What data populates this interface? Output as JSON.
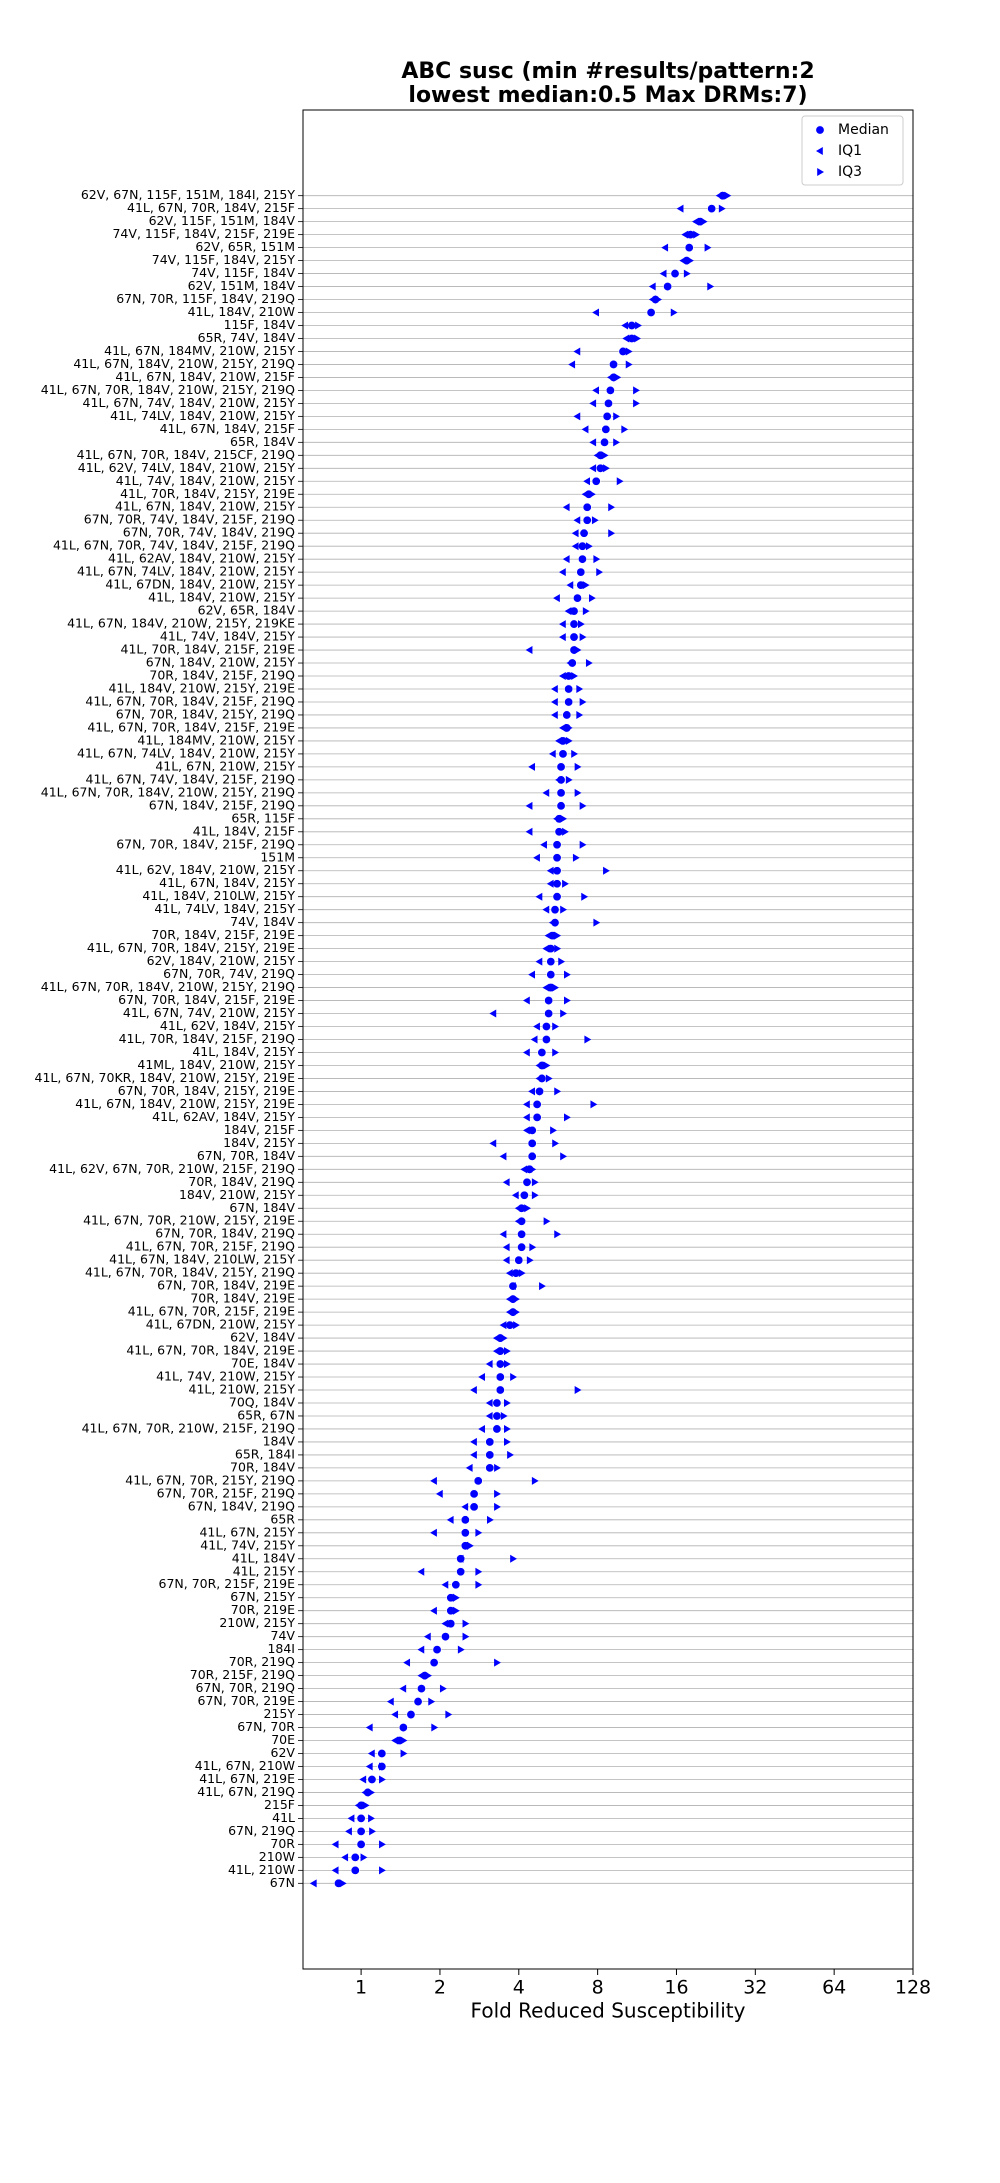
{
  "chart_data": {
    "type": "dot",
    "title": [
      "ABC susc (min #results/pattern:2",
      "lowest median:0.5 Max DRMs:7)"
    ],
    "xlabel": "Fold Reduced Susceptibility",
    "xscale": "log2",
    "xlim": [
      0.6,
      128
    ],
    "xticks": [
      1,
      2,
      4,
      8,
      16,
      32,
      64,
      128
    ],
    "grid": true,
    "legend": "upper right",
    "categories": [
      "62V, 67N, 115F, 151M, 184I, 215Y",
      "41L, 67N, 70R, 184V, 215F",
      "62V, 115F, 151M, 184V",
      "74V, 115F, 184V, 215F, 219E",
      "62V, 65R, 151M",
      "74V, 115F, 184V, 215Y",
      "74V, 115F, 184V",
      "62V, 151M, 184V",
      "67N, 70R, 115F, 184V, 219Q",
      "41L, 184V, 210W",
      "115F, 184V",
      "65R, 74V, 184V",
      "41L, 67N, 184MV, 210W, 215Y",
      "41L, 67N, 184V, 210W, 215Y, 219Q",
      "41L, 67N, 184V, 210W, 215F",
      "41L, 67N, 70R, 184V, 210W, 215Y, 219Q",
      "41L, 67N, 74V, 184V, 210W, 215Y",
      "41L, 74LV, 184V, 210W, 215Y",
      "41L, 67N, 184V, 215F",
      "65R, 184V",
      "41L, 67N, 70R, 184V, 215CF, 219Q",
      "41L, 62V, 74LV, 184V, 210W, 215Y",
      "41L, 74V, 184V, 210W, 215Y",
      "41L, 70R, 184V, 215Y, 219E",
      "41L, 67N, 184V, 210W, 215Y",
      "67N, 70R, 74V, 184V, 215F, 219Q",
      "67N, 70R, 74V, 184V, 219Q",
      "41L, 67N, 70R, 74V, 184V, 215F, 219Q",
      "41L, 62AV, 184V, 210W, 215Y",
      "41L, 67N, 74LV, 184V, 210W, 215Y",
      "41L, 67DN, 184V, 210W, 215Y",
      "41L, 184V, 210W, 215Y",
      "62V, 65R, 184V",
      "41L, 67N, 184V, 210W, 215Y, 219KE",
      "41L, 74V, 184V, 215Y",
      "41L, 70R, 184V, 215F, 219E",
      "67N, 184V, 210W, 215Y",
      "70R, 184V, 215F, 219Q",
      "41L, 184V, 210W, 215Y, 219E",
      "41L, 67N, 70R, 184V, 215F, 219Q",
      "67N, 70R, 184V, 215Y, 219Q",
      "41L, 67N, 70R, 184V, 215F, 219E",
      "41L, 184MV, 210W, 215Y",
      "41L, 67N, 74LV, 184V, 210W, 215Y",
      "41L, 67N, 210W, 215Y",
      "41L, 67N, 74V, 184V, 215F, 219Q",
      "41L, 67N, 70R, 184V, 210W, 215Y, 219Q",
      "67N, 184V, 215F, 219Q",
      "65R, 115F",
      "41L, 184V, 215F",
      "67N, 70R, 184V, 215F, 219Q",
      "151M",
      "41L, 62V, 184V, 210W, 215Y",
      "41L, 67N, 184V, 215Y",
      "41L, 184V, 210LW, 215Y",
      "41L, 74LV, 184V, 215Y",
      "74V, 184V",
      "70R, 184V, 215F, 219E",
      "41L, 67N, 70R, 184V, 215Y, 219E",
      "62V, 184V, 210W, 215Y",
      "67N, 70R, 74V, 219Q",
      "41L, 67N, 70R, 184V, 210W, 215Y, 219Q",
      "67N, 70R, 184V, 215F, 219E",
      "41L, 67N, 74V, 210W, 215Y",
      "41L, 62V, 184V, 215Y",
      "41L, 70R, 184V, 215F, 219Q",
      "41L, 184V, 215Y",
      "41ML, 184V, 210W, 215Y",
      "41L, 67N, 70KR, 184V, 210W, 215Y, 219E",
      "67N, 70R, 184V, 215Y, 219E",
      "41L, 67N, 184V, 210W, 215Y, 219E",
      "41L, 62AV, 184V, 215Y",
      "184V, 215F",
      "184V, 215Y",
      "67N, 70R, 184V",
      "41L, 62V, 67N, 70R, 210W, 215F, 219Q",
      "70R, 184V, 219Q",
      "184V, 210W, 215Y",
      "67N, 184V",
      "41L, 67N, 70R, 210W, 215Y, 219E",
      "67N, 70R, 184V, 219Q",
      "41L, 67N, 70R, 215F, 219Q",
      "41L, 67N, 184V, 210LW, 215Y",
      "41L, 67N, 70R, 184V, 215Y, 219Q",
      "67N, 70R, 184V, 219E",
      "70R, 184V, 219E",
      "41L, 67N, 70R, 215F, 219E",
      "41L, 67DN, 210W, 215Y",
      "62V, 184V",
      "41L, 67N, 70R, 184V, 219E",
      "70E, 184V",
      "41L, 74V, 210W, 215Y",
      "41L, 210W, 215Y",
      "70Q, 184V",
      "65R, 67N",
      "41L, 67N, 70R, 210W, 215F, 219Q",
      "184V",
      "65R, 184I",
      "70R, 184V",
      "41L, 67N, 70R, 215Y, 219Q",
      "67N, 70R, 215F, 219Q",
      "67N, 184V, 219Q",
      "65R",
      "41L, 67N, 215Y",
      "41L, 74V, 215Y",
      "41L, 184V",
      "41L, 215Y",
      "67N, 70R, 215F, 219E",
      "67N, 215Y",
      "70R, 219E",
      "210W, 215Y",
      "74V",
      "184I",
      "70R, 219Q",
      "70R, 215F, 219Q",
      "67N, 70R, 219Q",
      "67N, 70R, 219E",
      "215Y",
      "67N, 70R",
      "70E",
      "62V",
      "41L, 67N, 210W",
      "41L, 67N, 219E",
      "41L, 67N, 219Q",
      "215F",
      "41L",
      "67N, 219Q",
      "70R",
      "210W",
      "41L, 210W",
      "67N"
    ],
    "series": [
      {
        "name": "Median",
        "color": "#0000ff",
        "marker": "circle",
        "values": [
          24,
          21.8,
          19.7,
          18.1,
          17.9,
          17.5,
          15.8,
          14.8,
          13.3,
          12.8,
          10.8,
          10.8,
          10,
          9.2,
          9.2,
          8.95,
          8.8,
          8.7,
          8.6,
          8.5,
          8.2,
          8.2,
          7.9,
          7.4,
          7.3,
          7.3,
          7.1,
          7,
          7,
          6.9,
          6.9,
          6.7,
          6.5,
          6.5,
          6.5,
          6.5,
          6.4,
          6.2,
          6.2,
          6.2,
          6.1,
          6.1,
          5.9,
          5.9,
          5.8,
          5.8,
          5.8,
          5.8,
          5.7,
          5.7,
          5.6,
          5.6,
          5.6,
          5.6,
          5.6,
          5.5,
          5.5,
          5.4,
          5.3,
          5.3,
          5.3,
          5.3,
          5.2,
          5.2,
          5.1,
          5.1,
          4.9,
          4.9,
          4.9,
          4.8,
          4.7,
          4.7,
          4.5,
          4.5,
          4.5,
          4.4,
          4.3,
          4.2,
          4.1,
          4.1,
          4.1,
          4.1,
          4,
          3.9,
          3.8,
          3.8,
          3.8,
          3.7,
          3.4,
          3.4,
          3.4,
          3.4,
          3.4,
          3.3,
          3.3,
          3.3,
          3.1,
          3.1,
          3.1,
          2.8,
          2.7,
          2.7,
          2.5,
          2.5,
          2.5,
          2.4,
          2.4,
          2.3,
          2.2,
          2.2,
          2.2,
          2.1,
          1.95,
          1.9,
          1.75,
          1.7,
          1.65,
          1.55,
          1.45,
          1.4,
          1.2,
          1.2,
          1.1,
          1.06,
          1,
          1,
          1,
          1,
          0.95,
          0.95,
          0.82
        ]
      },
      {
        "name": "IQ1",
        "color": "#0000ff",
        "marker": "triangle-left",
        "values": [
          23.4,
          16.6,
          19,
          17.3,
          14.5,
          17,
          14.3,
          13,
          13,
          7.9,
          10.2,
          10.3,
          6.7,
          6.4,
          9,
          7.9,
          7.7,
          6.7,
          7.2,
          7.7,
          8,
          7.7,
          7.3,
          7.2,
          6.1,
          6.7,
          6.6,
          6.6,
          6.1,
          5.9,
          6.3,
          5.6,
          6.2,
          5.9,
          5.9,
          4.4,
          6.3,
          5.9,
          5.5,
          5.5,
          5.5,
          5.9,
          5.7,
          5.4,
          4.5,
          5.7,
          5.1,
          4.4,
          5.6,
          4.4,
          5,
          4.7,
          5.3,
          5.3,
          4.8,
          5.1,
          5.4,
          5.2,
          5.1,
          4.8,
          4.5,
          5.1,
          4.3,
          3.2,
          4.7,
          4.6,
          4.3,
          4.8,
          4.8,
          4.5,
          4.3,
          4.3,
          4.3,
          3.2,
          3.5,
          4.2,
          3.6,
          3.9,
          4,
          4,
          3.5,
          3.6,
          3.6,
          3.7,
          3.8,
          3.7,
          3.7,
          3.5,
          3.3,
          3.3,
          3.1,
          2.9,
          2.7,
          3.1,
          3.1,
          2.9,
          2.7,
          2.7,
          2.6,
          1.9,
          2,
          2.5,
          2.2,
          1.9,
          2.5,
          2.4,
          1.7,
          2.1,
          2.2,
          1.9,
          2.1,
          1.8,
          1.7,
          1.5,
          1.7,
          1.45,
          1.3,
          1.35,
          1.08,
          1.35,
          1.1,
          1.08,
          1.02,
          1.04,
          0.98,
          0.92,
          0.9,
          0.8,
          0.87,
          0.8,
          0.66
        ]
      },
      {
        "name": "IQ3",
        "color": "#0000ff",
        "marker": "triangle-right",
        "values": [
          25,
          23.8,
          20.3,
          19,
          21,
          18,
          17.5,
          21.5,
          13.6,
          15.6,
          11.4,
          11.3,
          10.5,
          10.5,
          9.5,
          11.2,
          11.2,
          9.4,
          10.1,
          9.4,
          8.5,
          8.6,
          9.7,
          7.6,
          9,
          7.8,
          9,
          7.4,
          7.9,
          8.1,
          7.2,
          7.6,
          7.2,
          6.9,
          7,
          6.7,
          7.4,
          6.5,
          6.8,
          7,
          6.8,
          6.2,
          6.2,
          6.5,
          6.7,
          6.2,
          6.7,
          7,
          5.9,
          6,
          7,
          6.6,
          8.6,
          6,
          7.1,
          5.9,
          7.9,
          5.6,
          5.6,
          5.8,
          6.1,
          5.5,
          6.1,
          5.9,
          5.5,
          7.3,
          5.5,
          5.1,
          5.2,
          5.6,
          7.7,
          6.1,
          5.4,
          5.5,
          5.9,
          4.5,
          4.6,
          4.6,
          4.3,
          5.1,
          5.6,
          4.5,
          4.4,
          4.1,
          4.9,
          3.9,
          3.9,
          3.9,
          3.5,
          3.6,
          3.6,
          3.8,
          6.7,
          3.6,
          3.5,
          3.6,
          3.6,
          3.7,
          3.3,
          4.6,
          3.3,
          3.3,
          3.1,
          2.8,
          2.6,
          3.8,
          2.8,
          2.8,
          2.3,
          2.3,
          2.5,
          2.5,
          2.4,
          3.3,
          1.8,
          2.05,
          1.85,
          2.15,
          1.9,
          1.45,
          1.45,
          1.2,
          1.2,
          1.09,
          1.04,
          1.09,
          1.1,
          1.2,
          1.02,
          1.2,
          0.85
        ]
      }
    ]
  }
}
